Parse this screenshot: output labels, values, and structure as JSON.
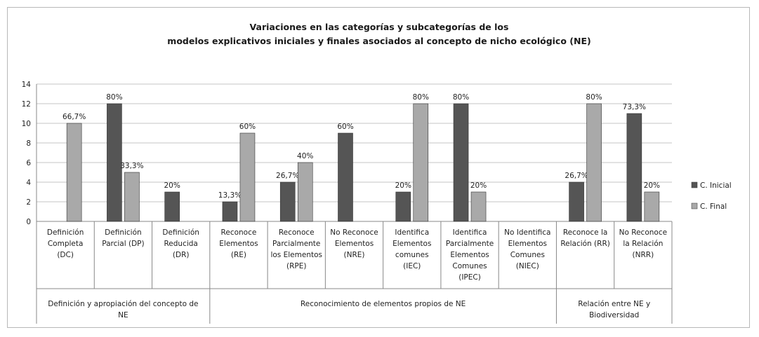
{
  "chart_data": {
    "type": "bar",
    "title_lines": [
      "Variaciones en las categorías y subcategorías de los",
      "modelos explicativos iniciales y finales asociados al concepto de nicho ecológico (NE)"
    ],
    "ylim": [
      0,
      14
    ],
    "yticks": [
      "0",
      "2",
      "4",
      "6",
      "8",
      "10",
      "12",
      "14"
    ],
    "grid": true,
    "legend_position": "right",
    "categories": [
      [
        "Definición",
        "Completa",
        "(DC)"
      ],
      [
        "Definición",
        "Parcial (DP)"
      ],
      [
        "Definición",
        "Reducida",
        "(DR)"
      ],
      [
        "Reconoce",
        "Elementos",
        "(RE)"
      ],
      [
        "Reconoce",
        "Parcialmente",
        "los Elementos",
        "(RPE)"
      ],
      [
        "No Reconoce",
        "Elementos",
        "(NRE)"
      ],
      [
        "Identifica",
        "Elementos",
        "comunes",
        "(IEC)"
      ],
      [
        "Identifica",
        "Parcialmente",
        "Elementos",
        "Comunes",
        "(IPEC)"
      ],
      [
        "No Identifica",
        "Elementos",
        "Comunes",
        "(NIEC)"
      ],
      [
        "Reconoce la",
        "Relación (RR)"
      ],
      [
        "No Reconoce",
        "la Relación",
        "(NRR)"
      ]
    ],
    "groups": [
      {
        "lines": [
          "Definición y apropiación del concepto de",
          "NE"
        ],
        "span": 3
      },
      {
        "lines": [
          "Reconocimiento de elementos propios de NE"
        ],
        "span": 6
      },
      {
        "lines": [
          "Relación entre NE y",
          "Biodiversidad"
        ],
        "span": 2
      }
    ],
    "series": [
      {
        "name": "C. Inicial",
        "color": "#555555",
        "values": [
          0,
          12,
          3,
          2,
          4,
          9,
          3,
          12,
          0,
          4,
          11
        ],
        "labels": [
          "",
          "80%",
          "20%",
          "13,3%",
          "26,7%",
          "60%",
          "20%",
          "80%",
          "",
          "26,7%",
          "73,3%"
        ]
      },
      {
        "name": "C. Final",
        "color": "#a9a9a9",
        "values": [
          10,
          5,
          0,
          9,
          6,
          0,
          12,
          3,
          0,
          12,
          3
        ],
        "labels": [
          "66,7%",
          "33,3%",
          "",
          "60%",
          "40%",
          "",
          "80%",
          "20%",
          "",
          "80%",
          "20%"
        ]
      }
    ]
  }
}
